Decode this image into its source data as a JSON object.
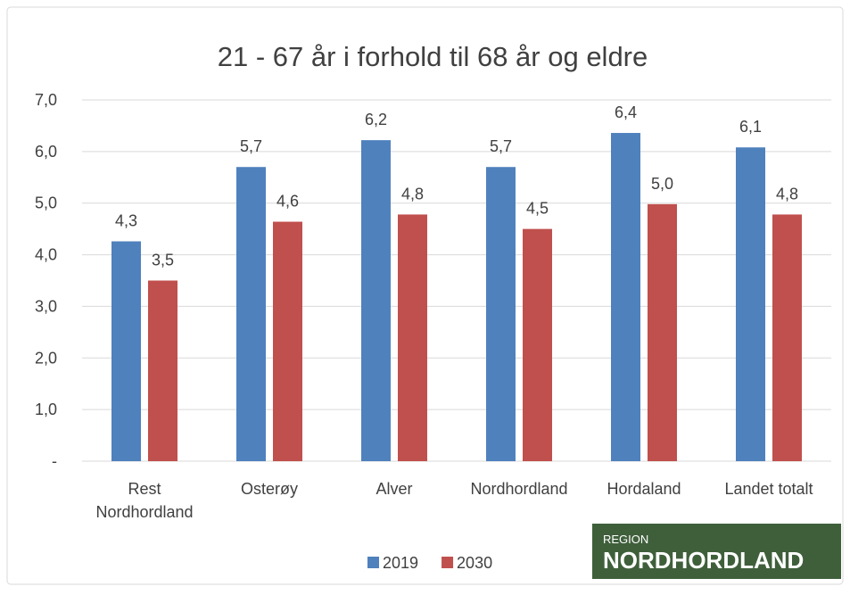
{
  "chart_data": {
    "type": "bar",
    "title": "21 - 67 år i forhold til 68 år og eldre",
    "categories": [
      "Rest Nordhordland",
      "Osterøy",
      "Alver",
      "Nordhordland",
      "Hordaland",
      "Landet totalt"
    ],
    "series": [
      {
        "name": "2019",
        "color": "#4f81bd",
        "values": [
          4.26,
          5.7,
          6.22,
          5.7,
          6.36,
          6.08
        ],
        "value_labels": [
          "4,3",
          "5,7",
          "6,2",
          "5,7",
          "6,4",
          "6,1"
        ]
      },
      {
        "name": "2030",
        "color": "#c0504d",
        "values": [
          3.5,
          4.64,
          4.78,
          4.5,
          4.98,
          4.78
        ],
        "value_labels": [
          "3,5",
          "4,6",
          "4,8",
          "4,5",
          "5,0",
          "4,8"
        ]
      }
    ],
    "ylim": [
      0,
      7
    ],
    "yticks": [
      {
        "value": 0,
        "label": "-"
      },
      {
        "value": 1,
        "label": "1,0"
      },
      {
        "value": 2,
        "label": "2,0"
      },
      {
        "value": 3,
        "label": "3,0"
      },
      {
        "value": 4,
        "label": "4,0"
      },
      {
        "value": 5,
        "label": "5,0"
      },
      {
        "value": 6,
        "label": "6,0"
      },
      {
        "value": 7,
        "label": "7,0"
      }
    ],
    "grid": true,
    "legend": "bottom"
  },
  "logo": {
    "line1": "REGION",
    "line2": "NORDHORDLAND"
  }
}
